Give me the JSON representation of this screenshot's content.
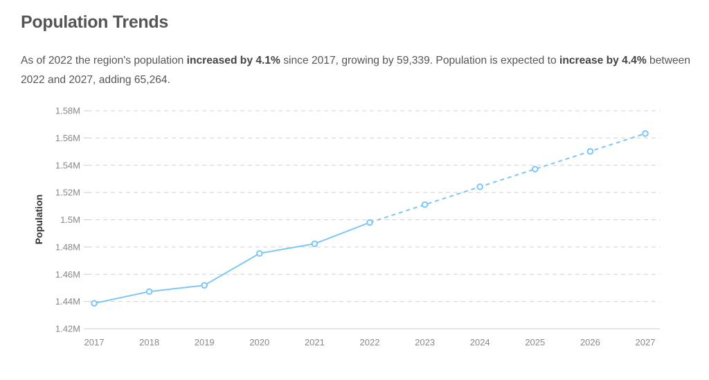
{
  "header": {
    "title": "Population Trends"
  },
  "summary": {
    "prefix": "As of 2022 the region's population ",
    "bold1": "increased by 4.1%",
    "middle": " since 2017, growing by 59,339. Population is expected to ",
    "bold2": "increase by 4.4%",
    "suffix": " between 2022 and 2027, adding 65,264."
  },
  "colors": {
    "line": "#7cc6f5",
    "grid": "#d0d0d0",
    "axis": "#cccccc"
  },
  "chart_data": {
    "type": "line",
    "title": "",
    "xlabel": "",
    "ylabel": "Population",
    "categories": [
      "2017",
      "2018",
      "2019",
      "2020",
      "2021",
      "2022",
      "2023",
      "2024",
      "2025",
      "2026",
      "2027"
    ],
    "yticks": [
      1420000,
      1440000,
      1460000,
      1480000,
      1500000,
      1520000,
      1540000,
      1560000,
      1580000
    ],
    "ytick_labels": [
      "1.42M",
      "1.44M",
      "1.46M",
      "1.48M",
      "1.5M",
      "1.52M",
      "1.54M",
      "1.56M",
      "1.58M"
    ],
    "ylim": [
      1420000,
      1580000
    ],
    "grid": true,
    "legend": "none",
    "series": [
      {
        "style": "solid",
        "x": [
          "2017",
          "2018",
          "2019",
          "2020",
          "2021",
          "2022"
        ],
        "values": [
          1438700,
          1447300,
          1451900,
          1475300,
          1482400,
          1498000
        ]
      },
      {
        "style": "dashed",
        "x": [
          "2022",
          "2023",
          "2024",
          "2025",
          "2026",
          "2027"
        ],
        "values": [
          1498000,
          1511100,
          1524200,
          1537200,
          1550200,
          1563300
        ]
      }
    ]
  }
}
